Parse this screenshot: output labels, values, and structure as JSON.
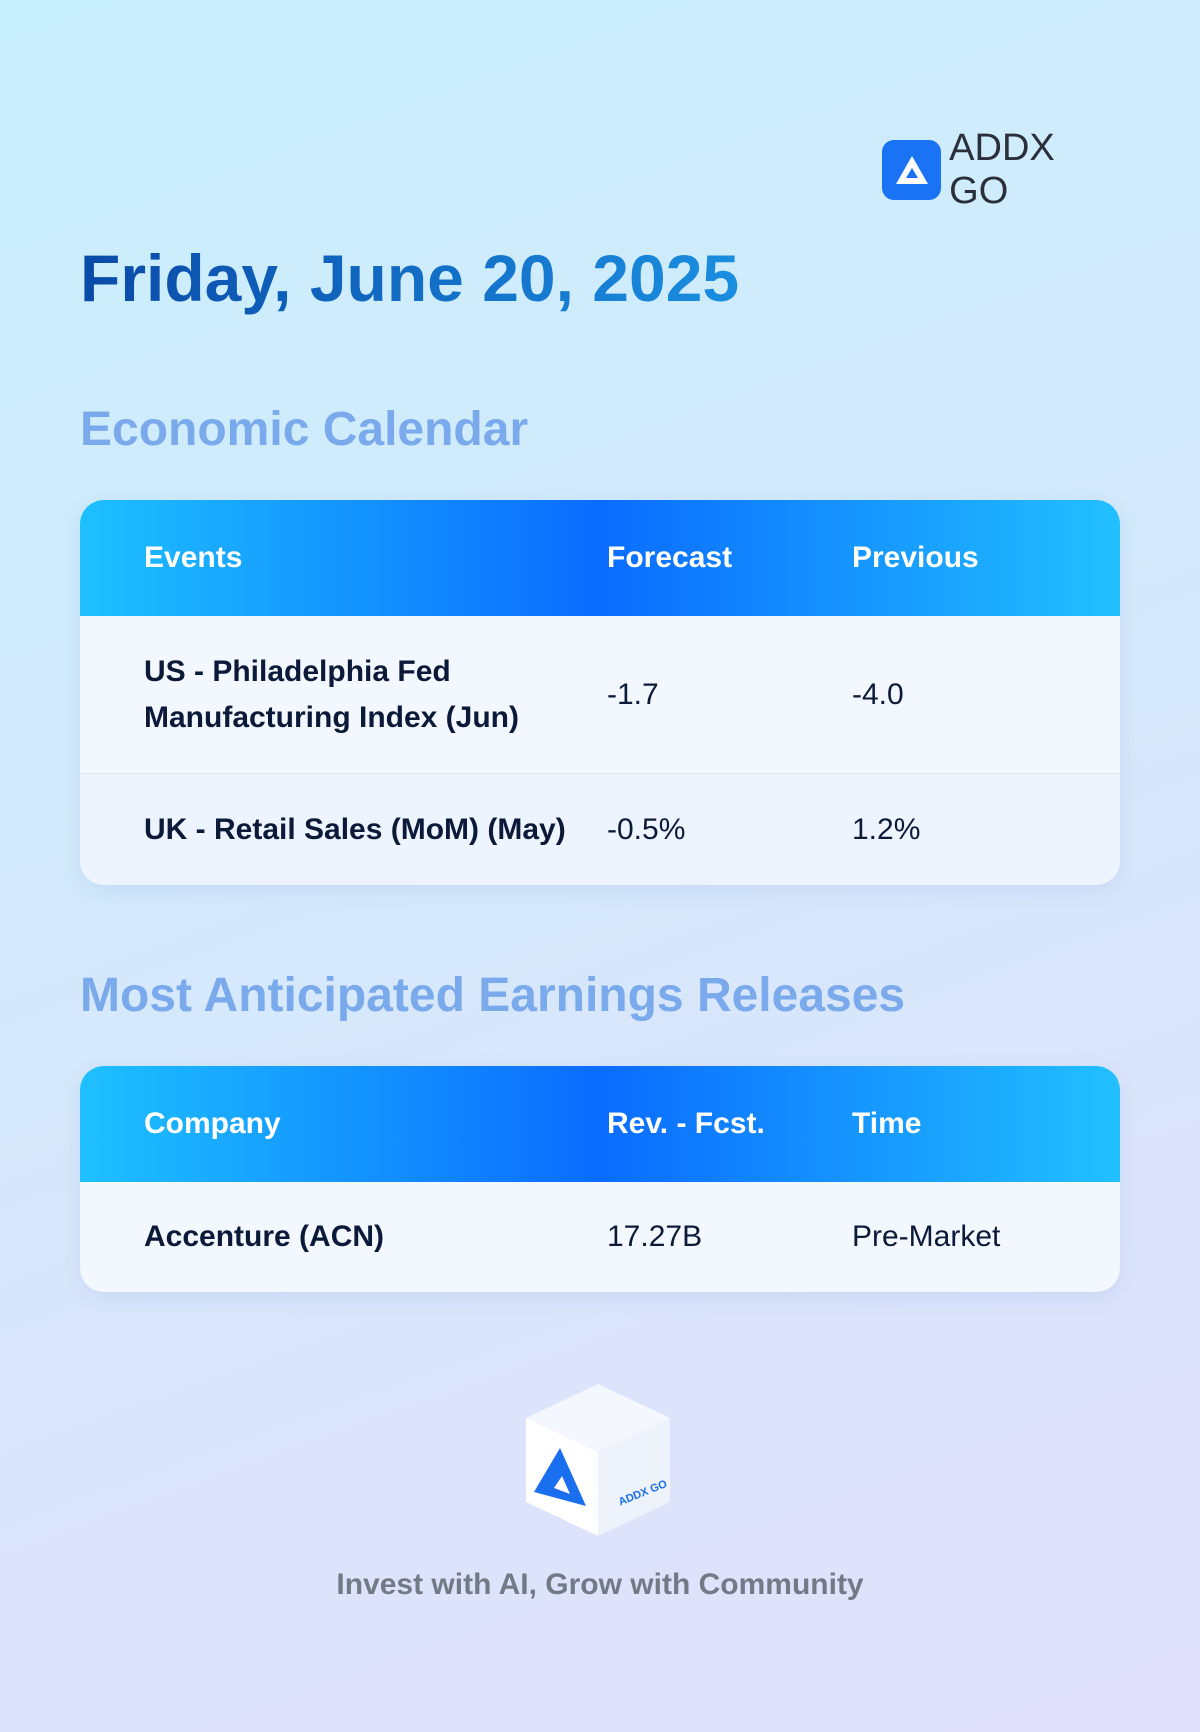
{
  "header": {
    "brand": "ADDX GO",
    "date": "Friday, June 20, 2025"
  },
  "economic_calendar": {
    "title": "Economic Calendar",
    "columns": [
      "Events",
      "Forecast",
      "Previous"
    ],
    "rows": [
      [
        "US - Philadelphia Fed Manufacturing Index (Jun)",
        "-1.7",
        "-4.0"
      ],
      [
        "UK - Retail Sales (MoM) (May)",
        "-0.5%",
        "1.2%"
      ]
    ]
  },
  "earnings": {
    "title": "Most Anticipated Earnings Releases",
    "columns": [
      "Company",
      "Rev. - Fcst.",
      "Time"
    ],
    "rows": [
      [
        "Accenture (ACN)",
        "17.27B",
        "Pre-Market"
      ]
    ]
  },
  "footer": {
    "badge": "ADDX GO",
    "tagline": "Invest with AI, Grow with Community"
  }
}
